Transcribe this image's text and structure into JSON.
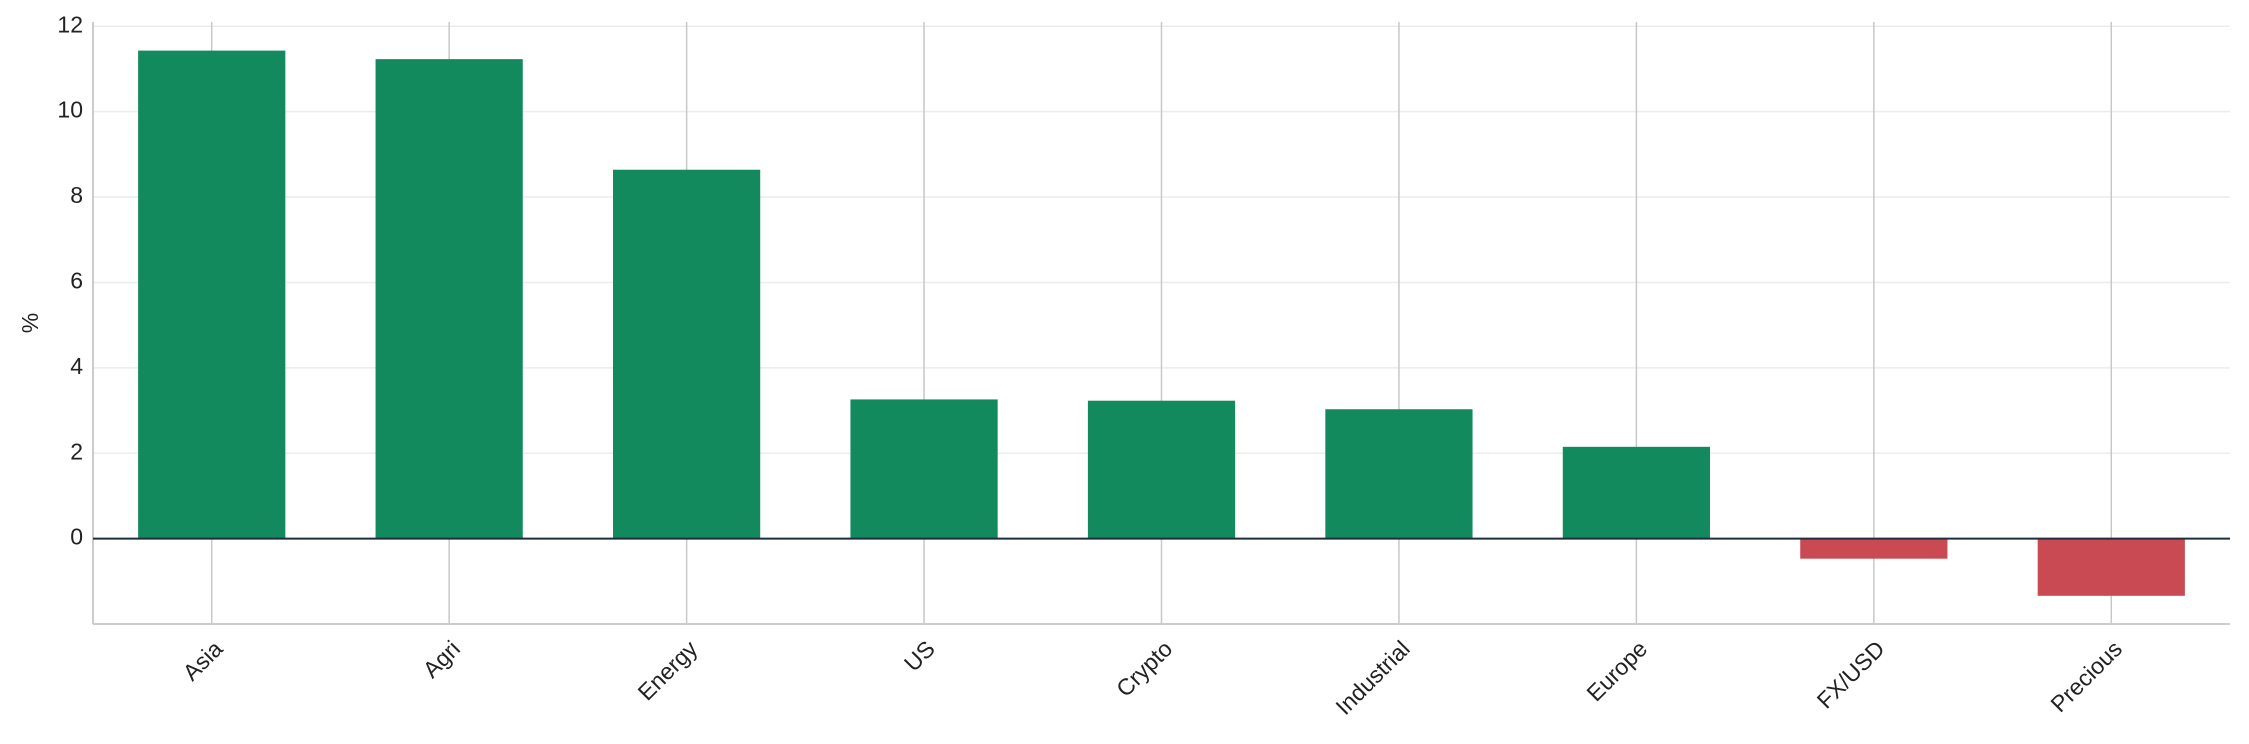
{
  "chart_data": {
    "type": "bar",
    "ylabel": "%",
    "categories": [
      "Asia",
      "Agri",
      "Energy",
      "US",
      "Crypto",
      "Industrial",
      "Europe",
      "FX/USD",
      "Precious"
    ],
    "values": [
      11.43,
      11.23,
      8.64,
      3.26,
      3.23,
      3.03,
      2.15,
      -0.47,
      -1.34
    ],
    "colors": [
      "#138a5e",
      "#138a5e",
      "#138a5e",
      "#138a5e",
      "#138a5e",
      "#138a5e",
      "#138a5e",
      "#c94a53",
      "#c94a53"
    ],
    "ylim": [
      -2,
      12.1
    ],
    "yticks": [
      0,
      2,
      4,
      6,
      8,
      10,
      12
    ],
    "grid": true
  }
}
